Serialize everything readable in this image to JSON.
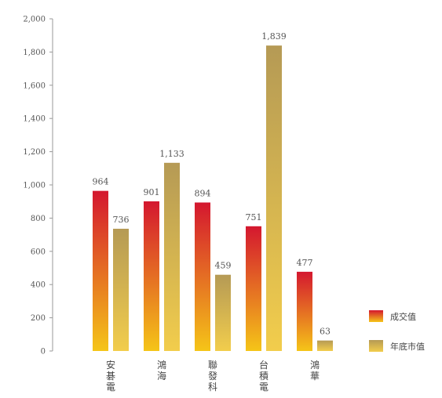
{
  "chart_data": {
    "type": "bar",
    "categories": [
      "安碁電",
      "鴻海",
      "聯發科",
      "台積電",
      "鴻華"
    ],
    "series": [
      {
        "name": "成交值",
        "values": [
          964,
          901,
          894,
          751,
          477
        ],
        "colors": [
          "#d4172f",
          "#f5c518"
        ]
      },
      {
        "name": "年底市值",
        "values": [
          736,
          1133,
          459,
          1839,
          63
        ],
        "colors": [
          "#b59a55",
          "#f2cd4c"
        ]
      }
    ],
    "value_labels": [
      [
        "964",
        "901",
        "894",
        "751",
        "477"
      ],
      [
        "736",
        "1,133",
        "459",
        "1,839",
        "63"
      ]
    ],
    "yticks": [
      "0",
      "200",
      "400",
      "600",
      "800",
      "1,000",
      "1,200",
      "1,400",
      "1,600",
      "1,800",
      "2,000"
    ],
    "ylim": [
      0,
      2000
    ],
    "title": "",
    "xlabel": "",
    "ylabel": "",
    "grid": false,
    "legend_position": "bottom-right"
  }
}
